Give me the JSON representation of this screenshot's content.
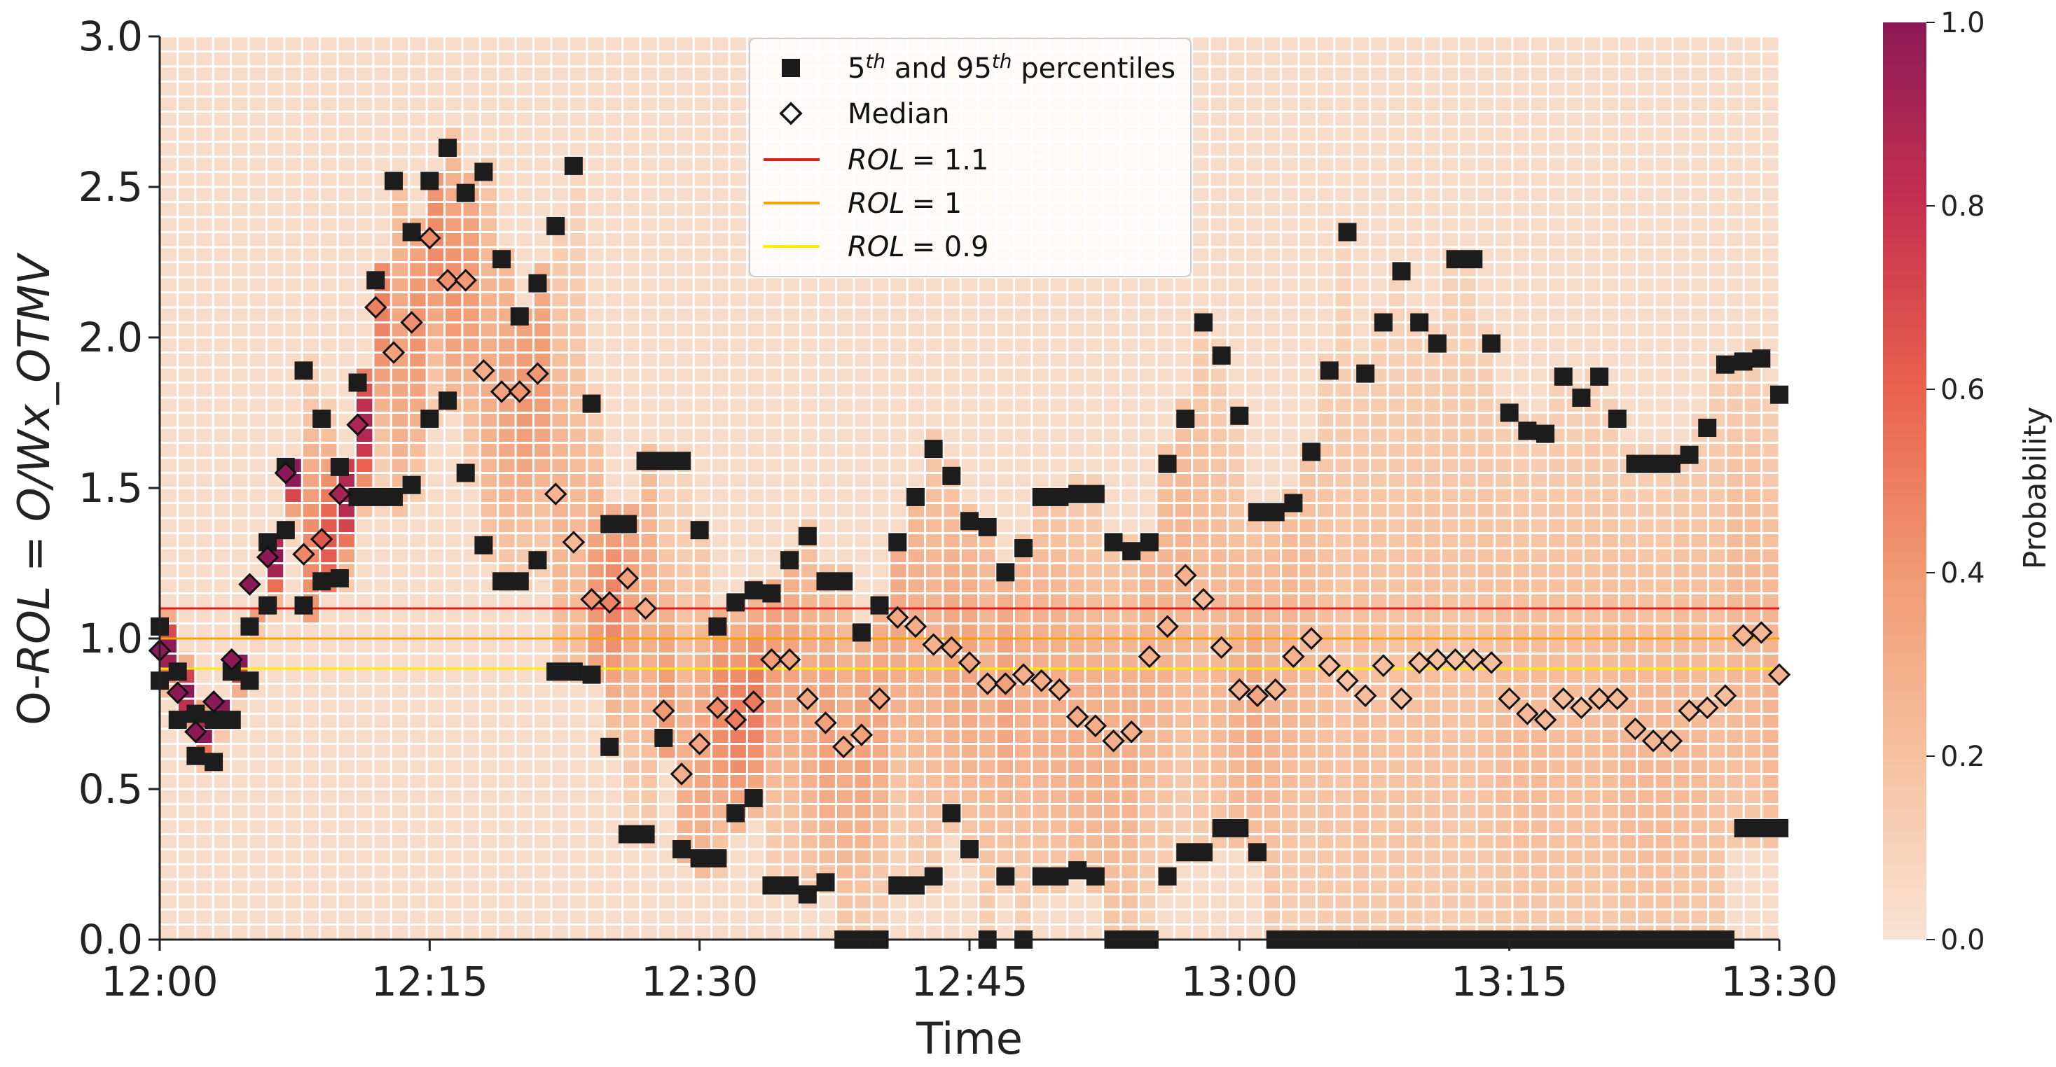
{
  "chart_data": {
    "type": "heatmap",
    "title": "",
    "xlabel": "Time",
    "ylabel": "O-ROL = O/Wx_OTMV",
    "ylabel_parts": {
      "italic_a": "ROL",
      "italic_b": "O/Wx_OTMV"
    },
    "x_ticks": [
      "12:00",
      "12:15",
      "12:30",
      "12:45",
      "13:00",
      "13:15",
      "13:30"
    ],
    "x_range_minutes": [
      0,
      90
    ],
    "y_ticks": [
      "0.0",
      "0.5",
      "1.0",
      "1.5",
      "2.0",
      "2.5",
      "3.0"
    ],
    "ylim": [
      0,
      3
    ],
    "colorbar": {
      "label": "Probability",
      "ticks": [
        "0.0",
        "0.2",
        "0.4",
        "0.6",
        "0.8",
        "1.0"
      ],
      "range": [
        0,
        1
      ],
      "colors": [
        "#f9e3d4",
        "#f6c1a0",
        "#f09a74",
        "#e8624e",
        "#c5314f",
        "#8c1a57"
      ]
    },
    "reference_lines": [
      {
        "name": "ROL = 1.1",
        "y": 1.1,
        "color": "#e31a1c"
      },
      {
        "name": "ROL = 1",
        "y": 1.0,
        "color": "#f5a300"
      },
      {
        "name": "ROL = 0.9",
        "y": 0.9,
        "color": "#ffee00"
      }
    ],
    "legend": {
      "placement": "top-center",
      "percentiles_label": {
        "p5": "5",
        "th1": "th",
        "and": " and ",
        "p95": "95",
        "th2": "th",
        "rest": " percentiles"
      },
      "median_label": "Median",
      "rol_labels": [
        {
          "var": "ROL",
          "rhs": "= 1.1"
        },
        {
          "var": "ROL",
          "rhs": "= 1"
        },
        {
          "var": "ROL",
          "rhs": "= 0.9"
        }
      ]
    },
    "series": [
      {
        "name": "5th and 95th percentiles (upper)",
        "x": [
          0,
          1,
          2,
          3,
          4,
          5,
          6,
          7,
          8,
          9,
          10,
          11,
          12,
          13,
          14,
          15,
          16,
          17,
          18,
          19,
          20,
          21,
          22,
          23,
          24,
          25,
          26,
          27,
          28,
          29,
          30,
          31,
          32,
          33,
          34,
          35,
          36,
          37,
          38,
          39,
          40,
          41,
          42,
          43,
          44,
          45,
          46,
          47,
          48,
          49,
          50,
          51,
          52,
          53,
          54,
          55,
          56,
          57,
          58,
          59,
          60,
          61,
          62,
          63,
          64,
          65,
          66,
          67,
          68,
          69,
          70,
          71,
          72,
          73,
          74,
          75,
          76,
          77,
          78,
          79,
          80,
          81,
          82,
          83,
          84,
          85,
          86,
          87,
          88,
          89,
          90
        ],
        "y": [
          1.04,
          0.89,
          0.75,
          0.73,
          0.89,
          1.04,
          1.32,
          1.57,
          1.89,
          1.73,
          1.57,
          1.85,
          2.19,
          2.52,
          2.35,
          2.52,
          2.63,
          2.48,
          2.55,
          2.26,
          2.07,
          2.18,
          2.37,
          2.57,
          1.78,
          1.38,
          1.38,
          1.59,
          1.59,
          1.59,
          1.36,
          1.04,
          1.12,
          1.16,
          1.15,
          1.26,
          1.34,
          1.19,
          1.19,
          1.02,
          1.11,
          1.32,
          1.47,
          1.63,
          1.54,
          1.39,
          1.37,
          1.22,
          1.3,
          1.47,
          1.47,
          1.48,
          1.48,
          1.32,
          1.29,
          1.32,
          1.58,
          1.73,
          2.05,
          1.94,
          1.74,
          1.42,
          1.42,
          1.45,
          1.62,
          1.89,
          2.35,
          1.88,
          2.05,
          2.22,
          2.05,
          1.98,
          2.26,
          2.26,
          1.98,
          1.75,
          1.69,
          1.68,
          1.87,
          1.8,
          1.87,
          1.73,
          1.58,
          1.58,
          1.58,
          1.61,
          1.7,
          1.91,
          1.92,
          1.93,
          1.81
        ]
      },
      {
        "name": "5th and 95th percentiles (lower)",
        "x": [
          0,
          1,
          2,
          3,
          4,
          5,
          6,
          7,
          8,
          9,
          10,
          11,
          12,
          13,
          14,
          15,
          16,
          17,
          18,
          19,
          20,
          21,
          22,
          23,
          24,
          25,
          26,
          27,
          28,
          29,
          30,
          31,
          32,
          33,
          34,
          35,
          36,
          37,
          38,
          39,
          40,
          41,
          42,
          43,
          44,
          45,
          46,
          47,
          48,
          49,
          50,
          51,
          52,
          53,
          54,
          55,
          56,
          57,
          58,
          59,
          60,
          61,
          62,
          63,
          64,
          65,
          66,
          67,
          68,
          69,
          70,
          71,
          72,
          73,
          74,
          75,
          76,
          77,
          78,
          79,
          80,
          81,
          82,
          83,
          84,
          85,
          86,
          87,
          88,
          89,
          90
        ],
        "y": [
          0.86,
          0.73,
          0.61,
          0.59,
          0.73,
          0.86,
          1.11,
          1.36,
          1.11,
          1.19,
          1.2,
          1.47,
          1.47,
          1.47,
          1.51,
          1.73,
          1.79,
          1.55,
          1.31,
          1.19,
          1.19,
          1.26,
          0.89,
          0.89,
          0.88,
          0.64,
          0.35,
          0.35,
          0.67,
          0.3,
          0.27,
          0.27,
          0.42,
          0.47,
          0.18,
          0.18,
          0.15,
          0.19,
          0.0,
          0.0,
          0.0,
          0.18,
          0.18,
          0.21,
          0.42,
          0.3,
          0.0,
          0.21,
          0.0,
          0.21,
          0.21,
          0.23,
          0.21,
          0.0,
          0.0,
          0.0,
          0.21,
          0.29,
          0.29,
          0.37,
          0.37,
          0.29,
          0.0,
          0.0,
          0.0,
          0.0,
          0.0,
          0.0,
          0.0,
          0.0,
          0.0,
          0.0,
          0.0,
          0.0,
          0.0,
          0.0,
          0.0,
          0.0,
          0.0,
          0.0,
          0.0,
          0.0,
          0.0,
          0.0,
          0.0,
          0.0,
          0.0,
          0.0,
          0.37,
          0.37,
          0.37
        ]
      },
      {
        "name": "Median",
        "x": [
          0,
          1,
          2,
          3,
          4,
          5,
          6,
          7,
          8,
          9,
          10,
          11,
          12,
          13,
          14,
          15,
          16,
          17,
          18,
          19,
          20,
          21,
          22,
          23,
          24,
          25,
          26,
          27,
          28,
          29,
          30,
          31,
          32,
          33,
          34,
          35,
          36,
          37,
          38,
          39,
          40,
          41,
          42,
          43,
          44,
          45,
          46,
          47,
          48,
          49,
          50,
          51,
          52,
          53,
          54,
          55,
          56,
          57,
          58,
          59,
          60,
          61,
          62,
          63,
          64,
          65,
          66,
          67,
          68,
          69,
          70,
          71,
          72,
          73,
          74,
          75,
          76,
          77,
          78,
          79,
          80,
          81,
          82,
          83,
          84,
          85,
          86,
          87,
          88,
          89,
          90
        ],
        "y": [
          0.96,
          0.82,
          0.69,
          0.79,
          0.93,
          1.18,
          1.27,
          1.55,
          1.28,
          1.33,
          1.48,
          1.71,
          2.1,
          1.95,
          2.05,
          2.33,
          2.19,
          2.19,
          1.89,
          1.82,
          1.82,
          1.88,
          1.48,
          1.32,
          1.13,
          1.12,
          1.2,
          1.1,
          0.76,
          0.55,
          0.65,
          0.77,
          0.73,
          0.79,
          0.93,
          0.93,
          0.8,
          0.72,
          0.64,
          0.68,
          0.8,
          1.07,
          1.04,
          0.98,
          0.97,
          0.92,
          0.85,
          0.85,
          0.88,
          0.86,
          0.83,
          0.74,
          0.71,
          0.66,
          0.69,
          0.94,
          1.04,
          1.21,
          1.13,
          0.97,
          0.83,
          0.81,
          0.83,
          0.94,
          1.0,
          0.91,
          0.86,
          0.81,
          0.91,
          0.8,
          0.92,
          0.93,
          0.93,
          0.93,
          0.92,
          0.8,
          0.75,
          0.73,
          0.8,
          0.77,
          0.8,
          0.8,
          0.7,
          0.66,
          0.66,
          0.76,
          0.77,
          0.81,
          1.01,
          1.02,
          0.88
        ]
      }
    ]
  }
}
